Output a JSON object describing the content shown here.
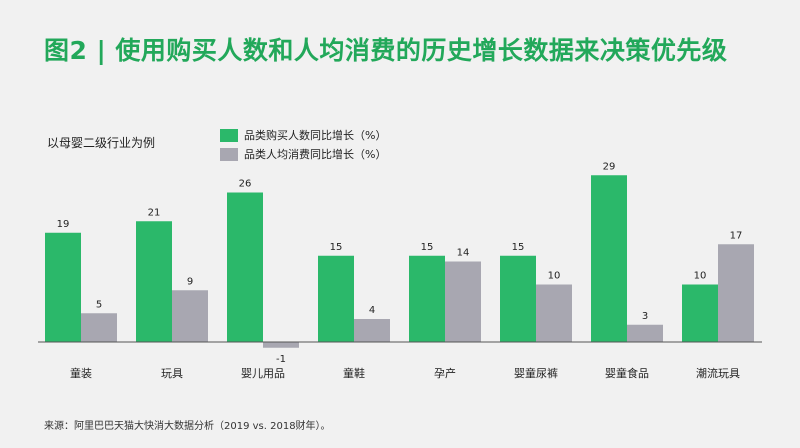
{
  "title": "图2 | 使用购买人数和人均消费的历史增长数据来决策优先级",
  "subtitle": "以母婴二级行业为例",
  "source": "来源：阿里巴巴天猫大快消大数据分析（2019 vs. 2018财年）。",
  "colors": {
    "title": "#22a85a",
    "series1": "#2bb86a",
    "series2": "#a8a7b1",
    "axis": "#555555"
  },
  "chart_data": {
    "type": "bar",
    "categories": [
      "童装",
      "玩具",
      "婴儿用品",
      "童鞋",
      "孕产",
      "婴童尿裤",
      "婴童食品",
      "潮流玩具"
    ],
    "series": [
      {
        "name": "品类购买人数同比增长（%）",
        "values": [
          19,
          21,
          26,
          15,
          15,
          15,
          29,
          10
        ]
      },
      {
        "name": "品类人均消费同比增长（%）",
        "values": [
          5,
          9,
          -1,
          4,
          14,
          10,
          3,
          17
        ]
      }
    ],
    "title": "",
    "xlabel": "",
    "ylabel": "",
    "ylim": [
      -1,
      29
    ],
    "grid": false,
    "legend_placement": "top-left"
  }
}
